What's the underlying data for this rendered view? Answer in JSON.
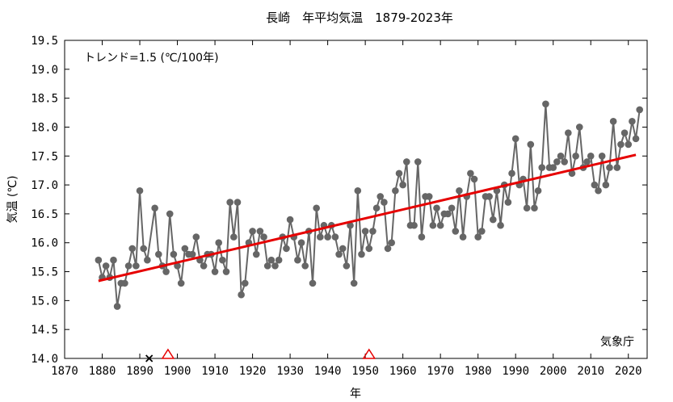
{
  "chart_data": {
    "type": "line",
    "title": "長崎　年平均気温　1879-2023年",
    "xlabel": "年",
    "ylabel": "気温 (℃)",
    "xlim": [
      1870,
      2025
    ],
    "ylim": [
      14.0,
      19.5
    ],
    "xticks": [
      1870,
      1880,
      1890,
      1900,
      1910,
      1920,
      1930,
      1940,
      1950,
      1960,
      1970,
      1980,
      1990,
      2000,
      2010,
      2020
    ],
    "yticks": [
      14.0,
      14.5,
      15.0,
      15.5,
      16.0,
      16.5,
      17.0,
      17.5,
      18.0,
      18.5,
      19.0,
      19.5
    ],
    "grid": false,
    "trend_label": "トレンド=1.5 (℃/100年)",
    "source_label": "気象庁",
    "series": [
      {
        "color": "#666666",
        "x": [
          1879,
          1880,
          1881,
          1882,
          1883,
          1884,
          1885,
          1886,
          1887,
          1888,
          1889,
          1890,
          1891,
          1892,
          1894,
          1895,
          1896,
          1897,
          1898,
          1899,
          1900,
          1901,
          1902,
          1903,
          1904,
          1905,
          1906,
          1907,
          1908,
          1909,
          1910,
          1911,
          1912,
          1913,
          1914,
          1915,
          1916,
          1917,
          1918,
          1919,
          1920,
          1921,
          1922,
          1923,
          1924,
          1925,
          1926,
          1927,
          1928,
          1929,
          1930,
          1931,
          1932,
          1933,
          1934,
          1935,
          1936,
          1937,
          1938,
          1939,
          1940,
          1941,
          1942,
          1943,
          1944,
          1945,
          1946,
          1947,
          1948,
          1949,
          1950,
          1951,
          1952,
          1953,
          1954,
          1955,
          1956,
          1957,
          1958,
          1959,
          1960,
          1961,
          1962,
          1963,
          1964,
          1965,
          1966,
          1967,
          1968,
          1969,
          1970,
          1971,
          1972,
          1973,
          1974,
          1975,
          1976,
          1977,
          1978,
          1979,
          1980,
          1981,
          1982,
          1983,
          1984,
          1985,
          1986,
          1987,
          1988,
          1989,
          1990,
          1991,
          1992,
          1993,
          1994,
          1995,
          1996,
          1997,
          1998,
          1999,
          2000,
          2001,
          2002,
          2003,
          2004,
          2005,
          2006,
          2007,
          2008,
          2009,
          2010,
          2011,
          2012,
          2013,
          2014,
          2015,
          2016,
          2017,
          2018,
          2019,
          2020,
          2021,
          2022,
          2023
        ],
        "y": [
          15.7,
          15.4,
          15.6,
          15.4,
          15.7,
          14.9,
          15.3,
          15.3,
          15.6,
          15.9,
          15.6,
          16.9,
          15.9,
          15.7,
          16.6,
          15.8,
          15.6,
          15.5,
          16.5,
          15.8,
          15.6,
          15.3,
          15.9,
          15.8,
          15.8,
          16.1,
          15.7,
          15.6,
          15.8,
          15.8,
          15.5,
          16.0,
          15.7,
          15.5,
          16.7,
          16.1,
          16.7,
          15.1,
          15.3,
          16.0,
          16.2,
          15.8,
          16.2,
          16.1,
          15.6,
          15.7,
          15.6,
          15.7,
          16.1,
          15.9,
          16.4,
          16.1,
          15.7,
          16.0,
          15.6,
          16.2,
          15.3,
          16.6,
          16.1,
          16.3,
          16.1,
          16.3,
          16.1,
          15.8,
          15.9,
          15.6,
          16.3,
          15.3,
          16.9,
          15.8,
          16.2,
          15.9,
          16.2,
          16.6,
          16.8,
          16.7,
          15.9,
          16.0,
          16.9,
          17.2,
          17.0,
          17.4,
          16.3,
          16.3,
          17.4,
          16.1,
          16.8,
          16.8,
          16.3,
          16.6,
          16.3,
          16.5,
          16.5,
          16.6,
          16.2,
          16.9,
          16.1,
          16.8,
          17.2,
          17.1,
          16.1,
          16.2,
          16.8,
          16.8,
          16.4,
          16.9,
          16.3,
          17.0,
          16.7,
          17.2,
          17.8,
          17.0,
          17.1,
          16.6,
          17.7,
          16.6,
          16.9,
          17.3,
          18.4,
          17.3,
          17.3,
          17.4,
          17.5,
          17.4,
          17.9,
          17.2,
          17.5,
          18.0,
          17.3,
          17.4,
          17.5,
          17.0,
          16.9,
          17.5,
          17.0,
          17.3,
          18.1,
          17.3,
          17.7,
          17.9,
          17.7,
          18.1,
          17.8,
          18.3
        ]
      }
    ],
    "trend": {
      "color": "#e60000",
      "x": [
        1879,
        2022
      ],
      "y": [
        15.34,
        17.52
      ]
    },
    "markers": [
      {
        "type": "cross",
        "x": 1892.5,
        "color": "#000000"
      },
      {
        "type": "triangle",
        "x": 1897.5,
        "color": "#e60000"
      },
      {
        "type": "triangle",
        "x": 1951.0,
        "color": "#e60000"
      }
    ]
  }
}
